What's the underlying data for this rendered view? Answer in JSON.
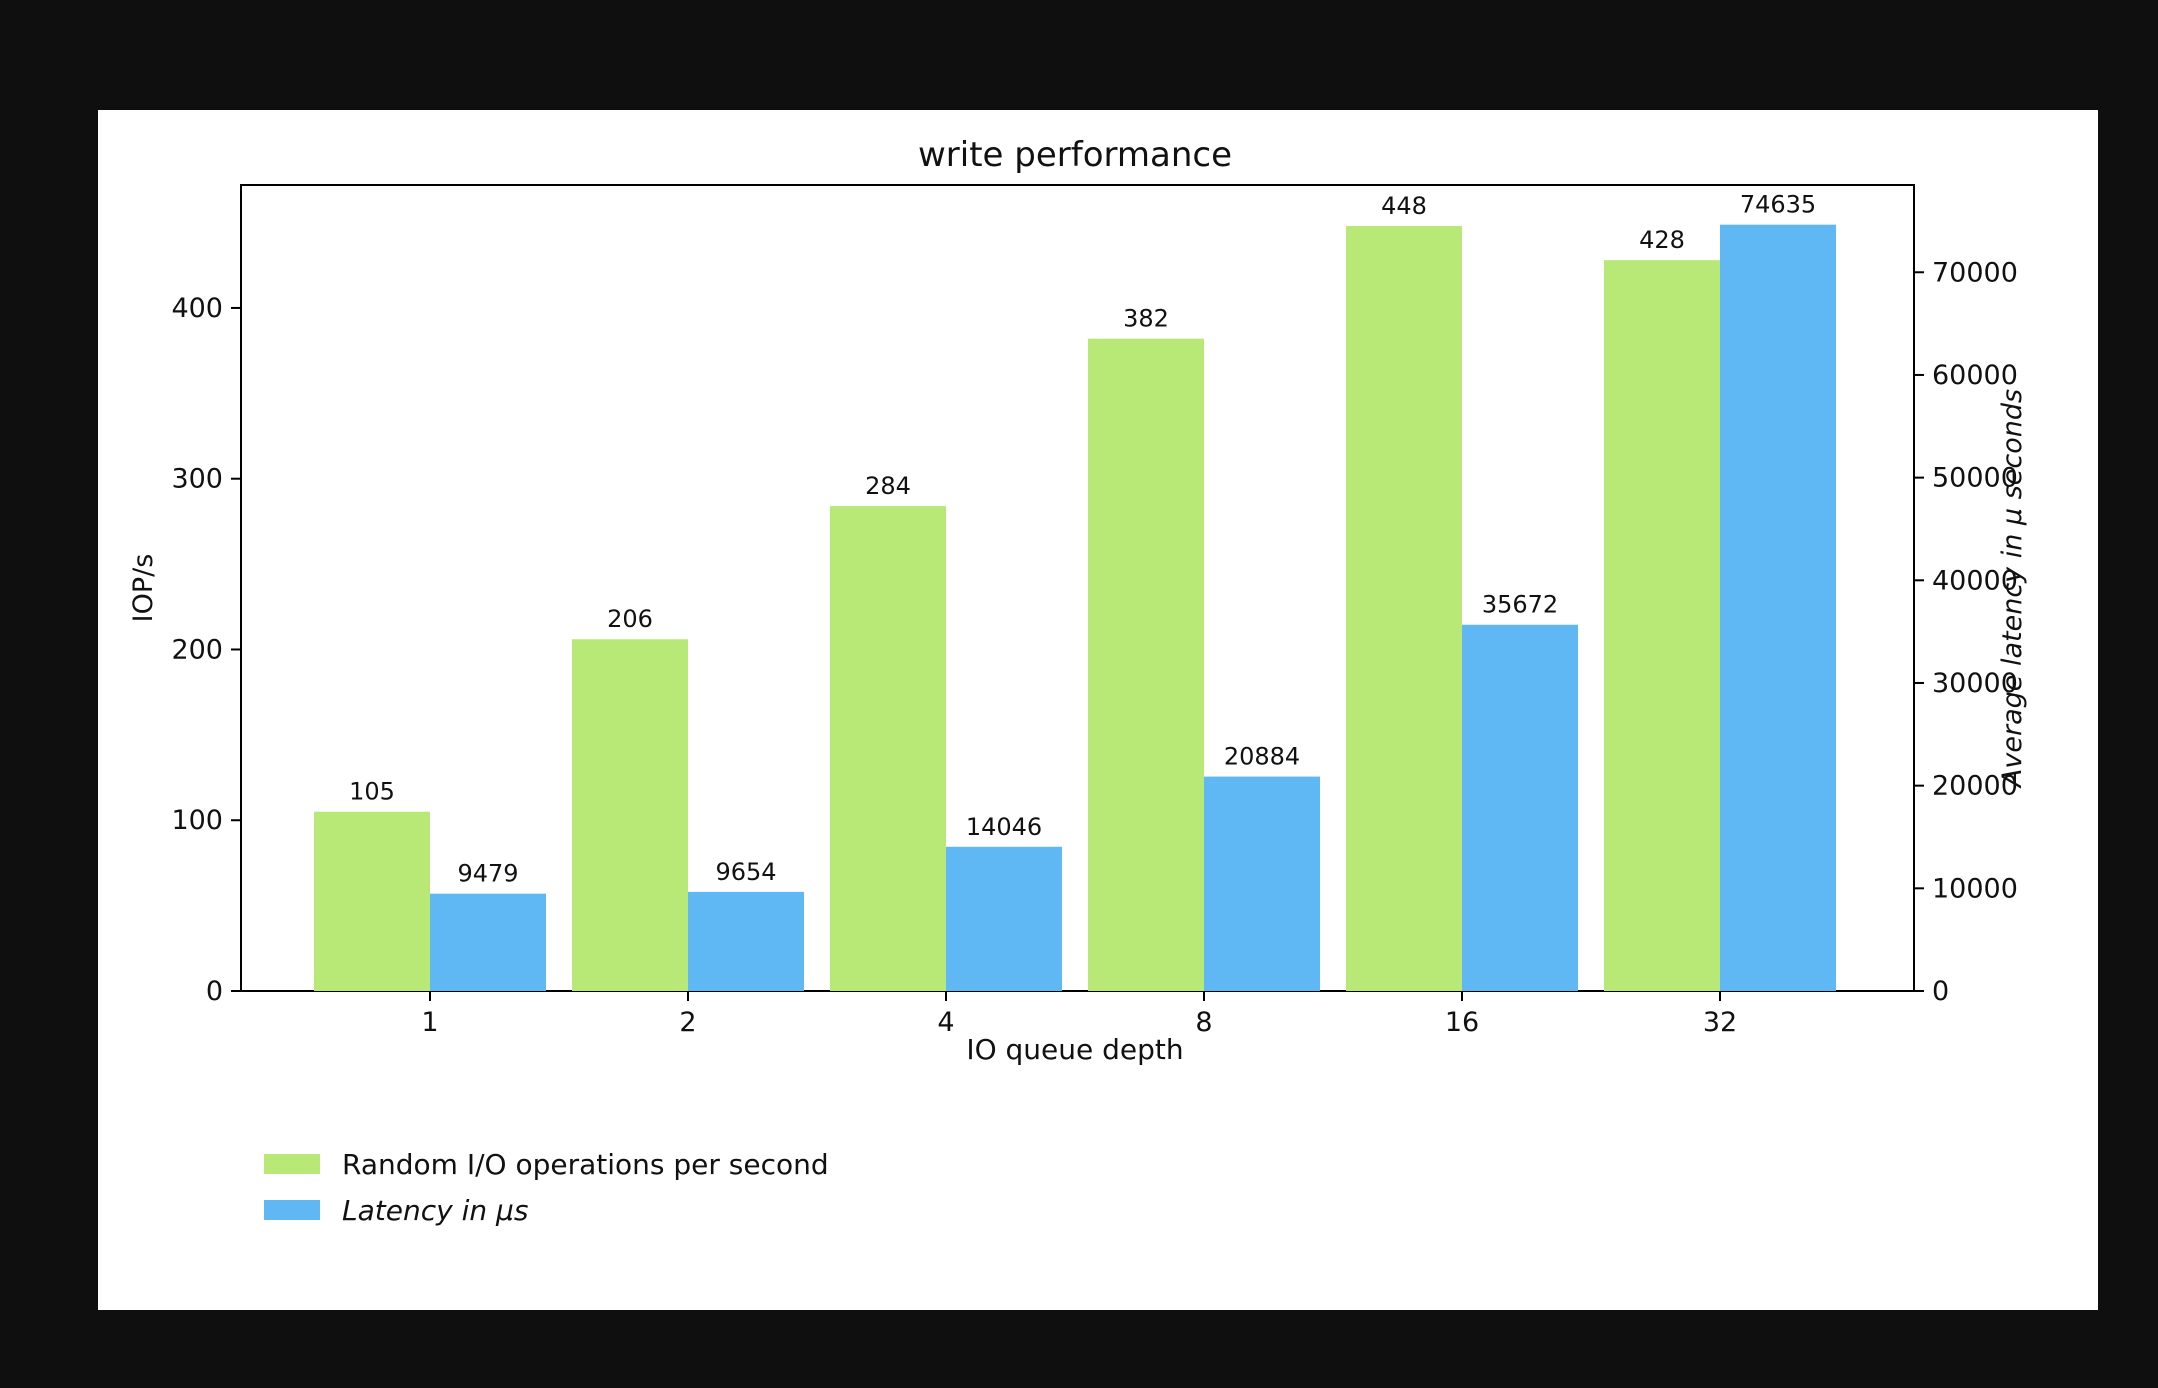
{
  "chart_data": {
    "type": "bar",
    "title": "write performance",
    "xlabel": "IO queue depth",
    "ylabel": "IOP/s",
    "ylabel_right": "Average latency in μ seconds",
    "categories": [
      "1",
      "2",
      "4",
      "8",
      "16",
      "32"
    ],
    "series": [
      {
        "name": "Random I/O operations per second",
        "axis": "left",
        "color": "#b8e977",
        "values": [
          105,
          206,
          284,
          382,
          448,
          428
        ]
      },
      {
        "name": "Latency in μs",
        "axis": "right",
        "color": "#5fb7f3",
        "values": [
          9479,
          9654,
          14046,
          20884,
          35672,
          74635
        ]
      }
    ],
    "ylim": [
      0,
      472
    ],
    "ylim_right": [
      0,
      78500
    ],
    "yticks": [
      0,
      100,
      200,
      300,
      400
    ],
    "yticks_right": [
      0,
      10000,
      20000,
      30000,
      40000,
      50000,
      60000,
      70000
    ],
    "legend_position": "bottom-left, below chart",
    "grid": false
  }
}
